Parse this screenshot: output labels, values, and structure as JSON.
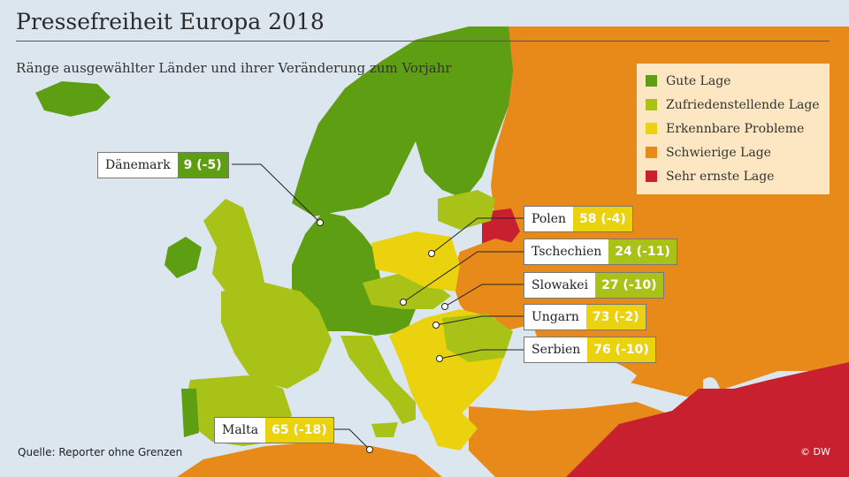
{
  "title": "Pressefreiheit Europa 2018",
  "subtitle": "Ränge ausgewählter Länder und ihrer Veränderung zum Vorjahr",
  "legend": [
    {
      "label": "Gute Lage",
      "color": "#5e9e12"
    },
    {
      "label": "Zufriedenstellende Lage",
      "color": "#a8c218"
    },
    {
      "label": "Erkennbare Probleme",
      "color": "#ead30e"
    },
    {
      "label": "Schwierige Lage",
      "color": "#e88a1a"
    },
    {
      "label": "Sehr ernste Lage",
      "color": "#c8202e"
    }
  ],
  "callouts": [
    {
      "country": "Dänemark",
      "rank": "9 (-5)",
      "color": "#5e9e12"
    },
    {
      "country": "Polen",
      "rank": "58 (-4)",
      "color": "#ead30e"
    },
    {
      "country": "Tschechien",
      "rank": "24 (-11)",
      "color": "#a8c218"
    },
    {
      "country": "Slowakei",
      "rank": "27 (-10)",
      "color": "#a8c218"
    },
    {
      "country": "Ungarn",
      "rank": "73 (-2)",
      "color": "#ead30e"
    },
    {
      "country": "Serbien",
      "rank": "76 (-10)",
      "color": "#ead30e"
    },
    {
      "country": "Malta",
      "rank": "65 (-18)",
      "color": "#ead30e"
    }
  ],
  "source": "Quelle: Reporter ohne Grenzen",
  "credit": "© DW"
}
